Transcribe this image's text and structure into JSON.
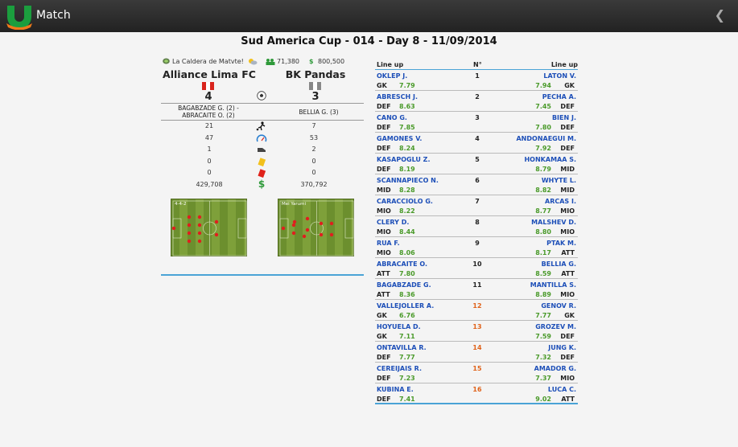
{
  "header": {
    "title": "Match",
    "back_icon": "chevron-left-icon"
  },
  "match": {
    "title": "Sud America Cup - 014 - Day 8 - 11/09/2014"
  },
  "info": {
    "stadium": "La Caldera de Matvte!",
    "attendance": "71,380",
    "revenue": "800,500"
  },
  "home": {
    "name": "Alliance Lima FC",
    "score": "4",
    "formation": "4-4-2",
    "scorers": [
      "BAGABZADE G. (2) -",
      "ABRACAITE O. (2)"
    ],
    "flag_colors": [
      "#d9251d",
      "#ffffff"
    ]
  },
  "away": {
    "name": "BK Pandas",
    "score": "3",
    "formation": "Mei Yarumi",
    "scorers": [
      "BELLIA G. (3)"
    ],
    "flag_colors": [
      "#888888",
      "#ffffff"
    ]
  },
  "stats": [
    {
      "icon": "shot-icon",
      "home": "21",
      "away": "7"
    },
    {
      "icon": "possession-gauge-icon",
      "home": "47",
      "away": "53"
    },
    {
      "icon": "foul-boot-icon",
      "home": "1",
      "away": "2"
    },
    {
      "icon": "yellow-card-icon",
      "home": "0",
      "away": "0"
    },
    {
      "icon": "red-card-icon",
      "home": "0",
      "away": "0"
    },
    {
      "icon": "money-icon",
      "home": "429,708",
      "away": "370,792"
    }
  ],
  "lineup": {
    "header_home": "Line up",
    "header_num": "N°",
    "header_away": "Line up",
    "rows": [
      {
        "num": "1",
        "home_name": "OKLEP J.",
        "home_pos": "GK",
        "home_rating": "7.79",
        "away_name": "LATON V.",
        "away_pos": "GK",
        "away_rating": "7.94"
      },
      {
        "num": "2",
        "home_name": "ABRESCH J.",
        "home_pos": "DEF",
        "home_rating": "8.63",
        "away_name": "PECHA A.",
        "away_pos": "DEF",
        "away_rating": "7.45"
      },
      {
        "num": "3",
        "home_name": "CANO G.",
        "home_pos": "DEF",
        "home_rating": "7.85",
        "away_name": "BIEN J.",
        "away_pos": "DEF",
        "away_rating": "7.80"
      },
      {
        "num": "4",
        "home_name": "GAMONES V.",
        "home_pos": "DEF",
        "home_rating": "8.24",
        "away_name": "ANDONAEGUI M.",
        "away_pos": "DEF",
        "away_rating": "7.92"
      },
      {
        "num": "5",
        "home_name": "KASAPOGLU Z.",
        "home_pos": "DEF",
        "home_rating": "8.19",
        "away_name": "HONKAMAA S.",
        "away_pos": "MID",
        "away_rating": "8.79"
      },
      {
        "num": "6",
        "home_name": "SCANNAPIECO N.",
        "home_pos": "MID",
        "home_rating": "8.28",
        "away_name": "WHYTE L.",
        "away_pos": "MID",
        "away_rating": "8.82"
      },
      {
        "num": "7",
        "home_name": "CARACCIOLO G.",
        "home_pos": "MIO",
        "home_rating": "8.22",
        "away_name": "ARCAS I.",
        "away_pos": "MIO",
        "away_rating": "8.77"
      },
      {
        "num": "8",
        "home_name": "CLERY D.",
        "home_pos": "MIO",
        "home_rating": "8.44",
        "away_name": "MALSHEV D.",
        "away_pos": "MIO",
        "away_rating": "8.80"
      },
      {
        "num": "9",
        "home_name": "RUA F.",
        "home_pos": "MIO",
        "home_rating": "8.06",
        "away_name": "PTAK M.",
        "away_pos": "ATT",
        "away_rating": "8.17"
      },
      {
        "num": "10",
        "home_name": "ABRACAITE O.",
        "home_pos": "ATT",
        "home_rating": "7.80",
        "away_name": "BELLIA G.",
        "away_pos": "ATT",
        "away_rating": "8.59"
      },
      {
        "num": "11",
        "home_name": "BAGABZADE G.",
        "home_pos": "ATT",
        "home_rating": "8.36",
        "away_name": "MANTILLA S.",
        "away_pos": "MIO",
        "away_rating": "8.89"
      },
      {
        "num": "12",
        "sub": true,
        "home_name": "VALLEJOLLER A.",
        "home_pos": "GK",
        "home_rating": "6.76",
        "away_name": "GENOV R.",
        "away_pos": "GK",
        "away_rating": "7.77"
      },
      {
        "num": "13",
        "sub": true,
        "home_name": "HOYUELA D.",
        "home_pos": "GK",
        "home_rating": "7.11",
        "away_name": "GROZEV M.",
        "away_pos": "DEF",
        "away_rating": "7.59"
      },
      {
        "num": "14",
        "sub": true,
        "home_name": "ONTAVILLA R.",
        "home_pos": "DEF",
        "home_rating": "7.77",
        "away_name": "JUNG K.",
        "away_pos": "DEF",
        "away_rating": "7.32"
      },
      {
        "num": "15",
        "sub": true,
        "home_name": "CEREIJAIS R.",
        "home_pos": "DEF",
        "home_rating": "7.23",
        "away_name": "AMADOR G.",
        "away_pos": "MIO",
        "away_rating": "7.37"
      },
      {
        "num": "16",
        "sub": true,
        "home_name": "KUBINA E.",
        "home_pos": "DEF",
        "home_rating": "7.41",
        "away_name": "LUCA C.",
        "away_pos": "ATT",
        "away_rating": "9.02"
      }
    ]
  }
}
